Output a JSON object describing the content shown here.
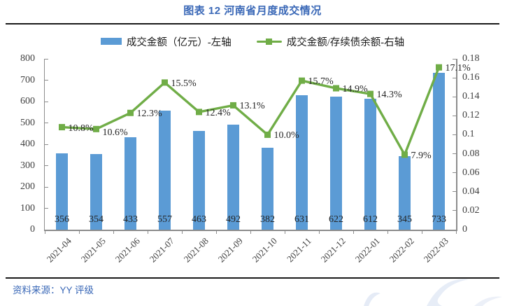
{
  "title": "图表 12 河南省月度成交情况",
  "source": "资料来源：YY 评级",
  "colors": {
    "bar": "#5B9BD5",
    "line": "#70AD47",
    "heading_blue": "#3A68B7",
    "axis_gray": "#8C8C8C",
    "label_dark": "#262626",
    "watermark_blue": "#D4DEF0"
  },
  "chart_data": {
    "type": "bar",
    "subtype": "bar-and-line-combo",
    "grid": false,
    "legend_position": "top",
    "categories": [
      "2021-04",
      "2021-05",
      "2021-06",
      "2021-07",
      "2021-08",
      "2021-09",
      "2021-10",
      "2021-11",
      "2021-12",
      "2022-01",
      "2022-02",
      "2022-03"
    ],
    "series": [
      {
        "name": "成交金额（亿元）-左轴",
        "type": "bar",
        "axis": "left",
        "values": [
          356,
          354,
          433,
          557,
          463,
          492,
          382,
          631,
          622,
          612,
          345,
          733
        ],
        "value_labels": [
          "356",
          "354",
          "433",
          "557",
          "463",
          "492",
          "382",
          "631",
          "622",
          "612",
          "345",
          "733"
        ]
      },
      {
        "name": "成交金额/存续债余额-右轴",
        "type": "line",
        "axis": "right",
        "values": [
          0.108,
          0.106,
          0.123,
          0.155,
          0.124,
          0.131,
          0.1,
          0.157,
          0.149,
          0.143,
          0.079,
          0.171
        ],
        "value_labels": [
          "10.8%",
          "10.6%",
          "12.3%",
          "15.5%",
          "12.4%",
          "13.1%",
          "10.0%",
          "15.7%",
          "14.9%",
          "14.3%",
          "7.9%",
          "17.1%"
        ]
      }
    ],
    "left_axis": {
      "min": 0,
      "max": 800,
      "tick_labels": [
        "0",
        "100",
        "200",
        "300",
        "400",
        "500",
        "600",
        "700",
        "800"
      ]
    },
    "right_axis": {
      "min": 0,
      "max": 0.18,
      "tick_labels": [
        "0",
        "0.02",
        "0.04",
        "0.06",
        "0.08",
        "0.1",
        "0.12",
        "0.14",
        "0.16",
        "0.18"
      ]
    }
  }
}
